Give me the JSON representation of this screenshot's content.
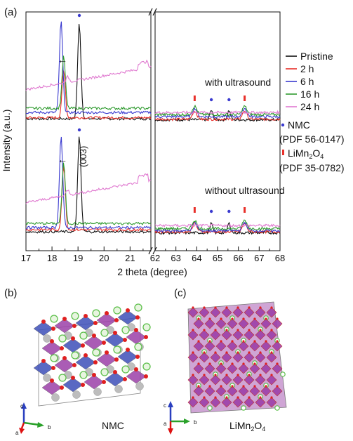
{
  "panels": {
    "a": "(a)",
    "b": "(b)",
    "c": "(c)"
  },
  "chart_data": {
    "type": "line",
    "xlabel": "2 theta (degree)",
    "ylabel": "Intensity (a.u.)",
    "x_ticks_left": [
      17,
      18,
      19,
      20,
      21
    ],
    "x_ticks_right": [
      62,
      63,
      64,
      65,
      66,
      67,
      68
    ],
    "xlim_left": [
      17,
      21.8
    ],
    "xlim_right": [
      62,
      68
    ],
    "axis_break": "//",
    "legend": {
      "placement": "right",
      "entries": [
        {
          "name": "Pristine",
          "color": "#111111"
        },
        {
          "name": "2 h",
          "color": "#e8302a"
        },
        {
          "name": "6 h",
          "color": "#3a3acf"
        },
        {
          "name": "16 h",
          "color": "#2e9a2e"
        },
        {
          "name": "24 h",
          "color": "#e07ad0"
        }
      ],
      "markers": [
        {
          "label": "NMC",
          "ref": "(PDF 56-0147)",
          "color": "#3a3acf",
          "shape": "dot"
        },
        {
          "label": "LiMn",
          "sub1": "2",
          "mid": "O",
          "sub2": "4",
          "ref": "(PDF 35-0782)",
          "color": "#e8302a",
          "shape": "bar"
        }
      ]
    },
    "groups": [
      {
        "label": "with ultrasound",
        "series": [
          {
            "name": "Pristine",
            "color": "#111111",
            "peak_x": 19.05,
            "peak_height": 0.92,
            "base": 0.02
          },
          {
            "name": "2 h",
            "color": "#e8302a",
            "peak_x": 18.45,
            "peak_height": 0.45,
            "base": 0.03
          },
          {
            "name": "6 h",
            "color": "#3a3acf",
            "peak_x": 18.35,
            "peak_height": 0.88,
            "base": 0.08
          },
          {
            "name": "16 h",
            "color": "#2e9a2e",
            "peak_x": 18.45,
            "peak_height": 0.5,
            "base": 0.12
          },
          {
            "name": "24 h",
            "color": "#e07ad0",
            "peak_x": 18.6,
            "peak_height": 0.05,
            "base": 0.3
          }
        ],
        "nmc_peaks": [
          19.05,
          64.7,
          65.55
        ],
        "limn_peaks": [
          63.9,
          66.3
        ],
        "annotations": [
          "←"
        ]
      },
      {
        "label": "without ultrasound",
        "series": [
          {
            "name": "Pristine",
            "color": "#111111",
            "peak_x": 19.05,
            "peak_height": 0.92,
            "base": 0.02
          },
          {
            "name": "2 h",
            "color": "#e8302a",
            "peak_x": 18.45,
            "peak_height": 0.62,
            "base": 0.04
          },
          {
            "name": "6 h",
            "color": "#3a3acf",
            "peak_x": 18.35,
            "peak_height": 0.88,
            "base": 0.06
          },
          {
            "name": "16 h",
            "color": "#2e9a2e",
            "peak_x": 18.45,
            "peak_height": 0.58,
            "base": 0.1
          },
          {
            "name": "24 h",
            "color": "#e07ad0",
            "peak_x": 18.6,
            "peak_height": 0.05,
            "base": 0.3
          }
        ],
        "nmc_peaks": [
          19.05,
          64.7,
          65.55
        ],
        "limn_peaks": [
          63.9,
          66.3
        ],
        "annotations": [
          "←",
          "(003)"
        ]
      }
    ]
  },
  "structures": {
    "left": {
      "caption": "NMC",
      "axes": [
        "c",
        "a",
        "b"
      ]
    },
    "right": {
      "caption": "LiMn",
      "caption_sub1": "2",
      "caption_mid": "O",
      "caption_sub2": "4",
      "axes": [
        "c",
        "a",
        "b"
      ]
    }
  },
  "colors": {
    "octa_blue": "#3d4fb8",
    "octa_purple": "#9b3fa8",
    "oxygen": "#e02020",
    "lithium": "#5cbf4a",
    "gray": "#bdbdbd"
  }
}
